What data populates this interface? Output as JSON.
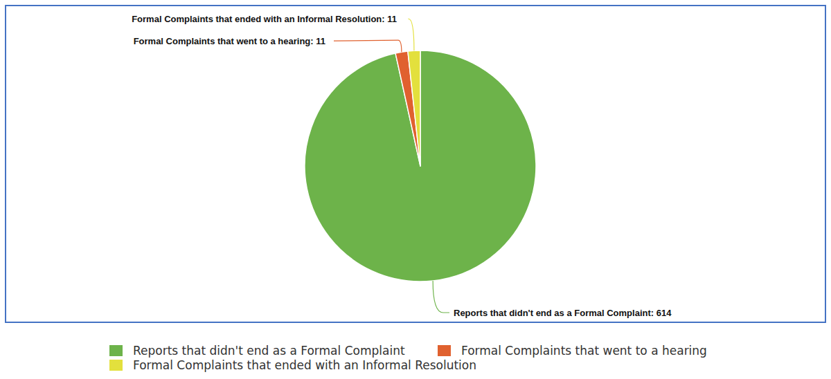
{
  "chart_data": {
    "type": "pie",
    "categories": [
      "Reports that didn't end as a Formal Complaint",
      "Formal Complaints that went to a hearing",
      "Formal Complaints that ended with an Informal Resolution"
    ],
    "values": [
      614,
      11,
      11
    ],
    "value_labels": [
      "Reports that didn't end as a Formal Complaint: 614",
      "Formal Complaints that went to a hearing: 11",
      "Formal Complaints that ended with an Informal Resolution: 11"
    ],
    "colors": [
      "#6db34a",
      "#e0612f",
      "#e3e03d"
    ],
    "data_labels": true,
    "legend": "bottom"
  }
}
